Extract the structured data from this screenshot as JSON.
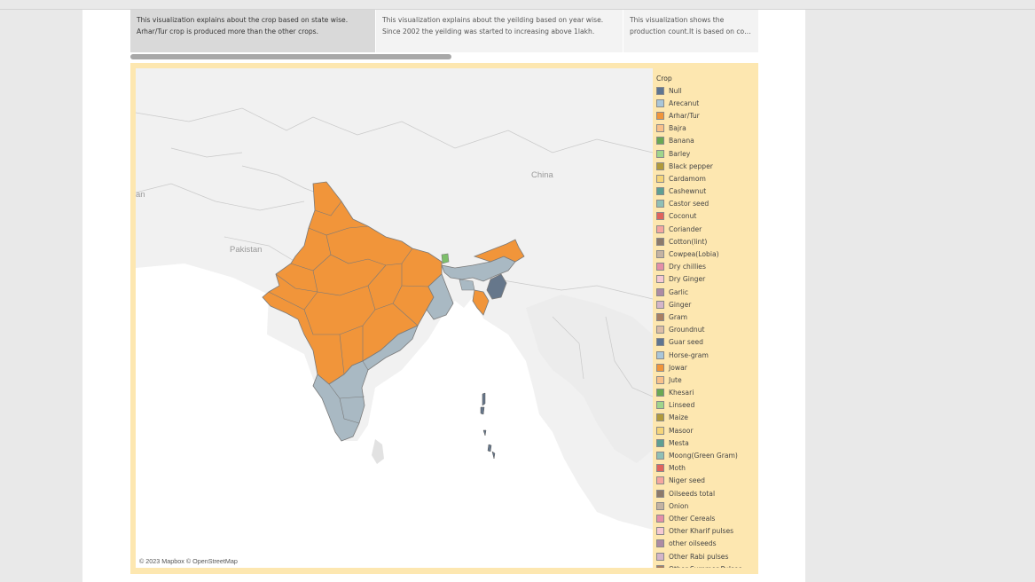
{
  "captions": [
    {
      "lines": [
        "This visualization explains about the crop based on state wise.",
        "Arhar/Tur crop is produced more than the other crops."
      ],
      "active": true
    },
    {
      "lines": [
        "This visualization explains about the yeilding based on year wise.",
        "Since 2002 the yeilding was started to increasing above 1lakh."
      ],
      "active": false
    },
    {
      "lines": [
        "This visualization shows the",
        "production count.It is based on cou.."
      ],
      "active": false
    }
  ],
  "map": {
    "labels": {
      "china": "China",
      "pakistan": "Pakistan",
      "left_edge": "an"
    },
    "attribution": "© 2023 Mapbox © OpenStreetMap",
    "colors": {
      "orange": "#f1953a",
      "bluegrey": "#a9b9c3",
      "slate": "#66778b",
      "green": "#7dbf6a",
      "base": "#f1f1f1",
      "land": "#e6e6e6",
      "water": "#ffffff"
    }
  },
  "legend": {
    "title": "Crop",
    "items": [
      {
        "label": "Null",
        "color": "#5e7591"
      },
      {
        "label": "Arecanut",
        "color": "#a9c6d9"
      },
      {
        "label": "Arhar/Tur",
        "color": "#f1953a"
      },
      {
        "label": "Bajra",
        "color": "#f9c08a"
      },
      {
        "label": "Banana",
        "color": "#6aa853"
      },
      {
        "label": "Barley",
        "color": "#9fd58b"
      },
      {
        "label": "Black pepper",
        "color": "#b29a3a"
      },
      {
        "label": "Cardamom",
        "color": "#f6d579"
      },
      {
        "label": "Cashewnut",
        "color": "#5e9f93"
      },
      {
        "label": "Castor seed",
        "color": "#8fbfb6"
      },
      {
        "label": "Coconut",
        "color": "#e0635c"
      },
      {
        "label": "Coriander",
        "color": "#f6a69f"
      },
      {
        "label": "Cotton(lint)",
        "color": "#8c7a6b"
      },
      {
        "label": "Cowpea(Lobia)",
        "color": "#c4b3a2"
      },
      {
        "label": "Dry chillies",
        "color": "#e58fa7"
      },
      {
        "label": "Dry Ginger",
        "color": "#f6c9d3"
      },
      {
        "label": "Garlic",
        "color": "#ad8ba4"
      },
      {
        "label": "Ginger",
        "color": "#d4b5c9"
      },
      {
        "label": "Gram",
        "color": "#a97f62"
      },
      {
        "label": "Groundnut",
        "color": "#dcbda7"
      },
      {
        "label": "Guar seed",
        "color": "#5e7591"
      },
      {
        "label": "Horse-gram",
        "color": "#a9c6d9"
      },
      {
        "label": "Jowar",
        "color": "#f1953a"
      },
      {
        "label": "Jute",
        "color": "#f9c08a"
      },
      {
        "label": "Khesari",
        "color": "#6aa853"
      },
      {
        "label": "Linseed",
        "color": "#9fd58b"
      },
      {
        "label": "Maize",
        "color": "#b29a3a"
      },
      {
        "label": "Masoor",
        "color": "#f6d579"
      },
      {
        "label": "Mesta",
        "color": "#5e9f93"
      },
      {
        "label": "Moong(Green Gram)",
        "color": "#8fbfb6"
      },
      {
        "label": "Moth",
        "color": "#e0635c"
      },
      {
        "label": "Niger seed",
        "color": "#f6a69f"
      },
      {
        "label": "Oilseeds total",
        "color": "#8c7a6b"
      },
      {
        "label": "Onion",
        "color": "#c4b3a2"
      },
      {
        "label": "Other Cereals",
        "color": "#e58fa7"
      },
      {
        "label": "Other Kharif pulses",
        "color": "#f6c9d3"
      },
      {
        "label": "other oilseeds",
        "color": "#ad8ba4"
      },
      {
        "label": "Other Rabi pulses",
        "color": "#d4b5c9"
      },
      {
        "label": "Other Summer Pulses",
        "color": "#a97f62"
      }
    ]
  }
}
